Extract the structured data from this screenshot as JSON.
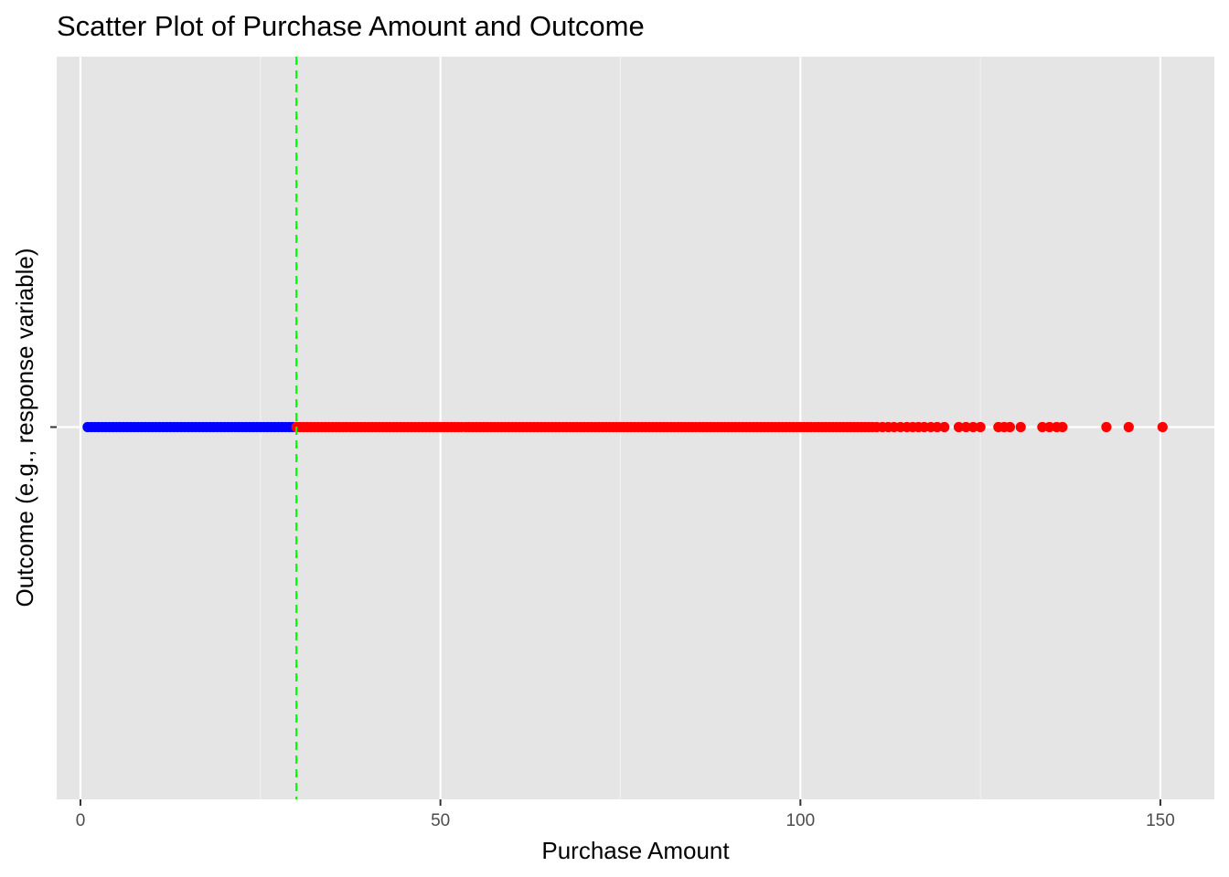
{
  "chart_data": {
    "type": "scatter",
    "title": "Scatter Plot of Purchase Amount and Outcome",
    "xlabel": "Purchase Amount",
    "ylabel": "Outcome (e.g., response variable)",
    "xlim": [
      -3.3,
      157.5
    ],
    "xticks": [
      0,
      50,
      100,
      150
    ],
    "xtick_labels": [
      "0",
      "50",
      "100",
      "150"
    ],
    "ytick_labels": [
      ""
    ],
    "grid": true,
    "legend": "none",
    "threshold_line": {
      "x": 30,
      "style": "dashed",
      "color": "#00ff00"
    },
    "series": [
      {
        "color": "#0000ff",
        "x": [
          1.0,
          1.5,
          2.0,
          2.5,
          3.0,
          3.5,
          4.0,
          4.5,
          5.0,
          5.5,
          6.0,
          6.5,
          7.0,
          7.5,
          8.0,
          8.5,
          9.0,
          9.5,
          10.0,
          10.5,
          11.0,
          11.5,
          12.0,
          12.5,
          13.0,
          13.5,
          14.0,
          14.5,
          15.0,
          15.5,
          16.0,
          16.5,
          17.0,
          17.5,
          18.0,
          18.5,
          19.0,
          19.5,
          20.0,
          20.5,
          21.0,
          21.5,
          22.0,
          22.5,
          23.0,
          23.5,
          24.0,
          24.5,
          25.0,
          25.5,
          26.0,
          26.5,
          27.0,
          27.5,
          28.0,
          28.5,
          29.0,
          29.5
        ]
      },
      {
        "color": "#ff0000",
        "x": [
          30.0,
          30.5,
          31.0,
          31.5,
          32.0,
          32.5,
          33.0,
          33.5,
          34.0,
          34.5,
          35.0,
          35.5,
          36.0,
          36.5,
          37.0,
          37.5,
          38.0,
          38.5,
          39.0,
          39.5,
          40.0,
          40.5,
          41.0,
          41.5,
          42.0,
          42.5,
          43.0,
          43.5,
          44.0,
          44.5,
          45.0,
          45.5,
          46.0,
          46.5,
          47.0,
          47.5,
          48.0,
          48.5,
          49.0,
          49.5,
          50.0,
          50.5,
          51.0,
          51.5,
          52.0,
          52.5,
          53.0,
          53.5,
          54.0,
          54.5,
          55.0,
          55.5,
          56.0,
          56.5,
          57.0,
          57.5,
          58.0,
          58.5,
          59.0,
          59.5,
          60.0,
          60.5,
          61.0,
          61.5,
          62.0,
          62.5,
          63.0,
          63.5,
          64.0,
          64.5,
          65.0,
          65.5,
          66.0,
          66.5,
          67.0,
          67.5,
          68.0,
          68.5,
          69.0,
          69.5,
          70.0,
          70.5,
          71.0,
          71.5,
          72.0,
          72.5,
          73.0,
          73.5,
          74.0,
          74.5,
          75.0,
          75.5,
          76.0,
          76.5,
          77.0,
          77.5,
          78.0,
          78.5,
          79.0,
          79.5,
          80.0,
          80.5,
          81.0,
          81.5,
          82.0,
          82.5,
          83.0,
          83.5,
          84.0,
          84.5,
          85.0,
          85.5,
          86.0,
          86.5,
          87.0,
          87.5,
          88.0,
          88.5,
          89.0,
          89.5,
          90.0,
          90.5,
          91.0,
          91.5,
          92.0,
          92.5,
          93.0,
          93.5,
          94.0,
          94.5,
          95.0,
          95.5,
          96.0,
          96.5,
          97.0,
          97.5,
          98.0,
          98.5,
          99.0,
          99.5,
          100.0,
          100.5,
          101.0,
          101.5,
          102.0,
          102.5,
          103.0,
          103.5,
          104.0,
          104.5,
          105.0,
          105.5,
          106.0,
          106.5,
          107.0,
          107.5,
          108.0,
          108.5,
          109.0,
          109.5,
          110.0,
          110.6,
          111.4,
          112.2,
          113.0,
          113.9,
          114.8,
          115.6,
          116.4,
          117.2,
          118.1,
          119.0,
          120.0,
          122.0,
          123.0,
          124.0,
          125.0,
          127.5,
          128.3,
          129.1,
          130.6,
          133.6,
          134.6,
          135.6,
          136.4,
          142.5,
          145.6,
          150.3
        ]
      }
    ]
  }
}
